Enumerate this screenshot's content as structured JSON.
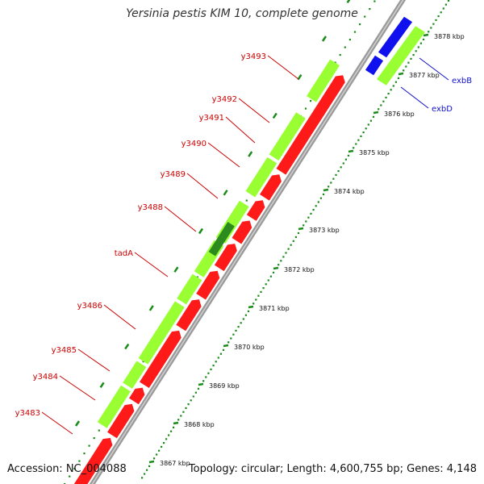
{
  "title": "Yersinia pestis KIM 10, complete genome",
  "accession": "Accession: NC_004088",
  "topology": "Topology: circular; Length: 4,600,755 bp; Genes: 4,148",
  "colors": {
    "backbone": "#8c8c8c",
    "forward_cds": "#99ff33",
    "reverse_cds": "#ff1a1a",
    "highlight": "#2d8a1f",
    "other_label_color": "#1111cc",
    "label_color": "#cc0000",
    "tick": "#1a8c1a"
  },
  "kbp_labels": [
    "3867 kbp",
    "3868 kbp",
    "3869 kbp",
    "3870 kbp",
    "3871 kbp",
    "3872 kbp",
    "3873 kbp",
    "3874 kbp",
    "3875 kbp",
    "3876 kbp",
    "3877 kbp",
    "3878 kbp"
  ],
  "gene_labels": [
    "y3483",
    "y3484",
    "y3485",
    "y3486",
    "tadA",
    "y3488",
    "y3489",
    "y3490",
    "y3491",
    "y3492",
    "y3493",
    "exbB",
    "exbD"
  ]
}
